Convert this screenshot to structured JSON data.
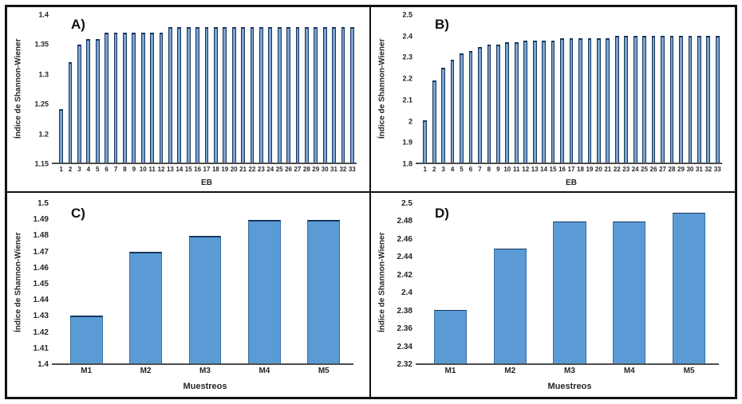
{
  "figure": {
    "background": "#ffffff",
    "border_color": "#111111",
    "axis_line_color": "#4d4d4d",
    "description": "Four-panel bar figure of Shannon-Wiener index"
  },
  "chart_data": [
    {
      "type": "bar",
      "panel_label": "A)",
      "xlabel": "EB",
      "ylabel": "Índice de Shannon-Wiener",
      "categories": [
        "1",
        "2",
        "3",
        "4",
        "5",
        "6",
        "7",
        "8",
        "9",
        "10",
        "11",
        "12",
        "13",
        "14",
        "15",
        "16",
        "17",
        "18",
        "19",
        "20",
        "21",
        "22",
        "23",
        "24",
        "25",
        "26",
        "27",
        "28",
        "29",
        "30",
        "31",
        "32",
        "33"
      ],
      "values": [
        1.24,
        1.32,
        1.35,
        1.36,
        1.36,
        1.37,
        1.37,
        1.37,
        1.37,
        1.37,
        1.37,
        1.37,
        1.38,
        1.38,
        1.38,
        1.38,
        1.38,
        1.38,
        1.38,
        1.38,
        1.38,
        1.38,
        1.38,
        1.38,
        1.38,
        1.38,
        1.38,
        1.38,
        1.38,
        1.38,
        1.38,
        1.38,
        1.38
      ],
      "ylim": [
        1.15,
        1.4
      ],
      "yticks": [
        "1.15",
        "1.2",
        "1.25",
        "1.3",
        "1.35",
        "1.4"
      ],
      "grid": false,
      "legend": false,
      "bar_fill": "#7da3cd",
      "bar_border": "#16365c",
      "bar_border_top_px": 2,
      "bar_frac": 0.42
    },
    {
      "type": "bar",
      "panel_label": "B)",
      "xlabel": "EB",
      "ylabel": "Índice de Shannon-Wiener",
      "categories": [
        "1",
        "2",
        "3",
        "4",
        "5",
        "6",
        "7",
        "8",
        "9",
        "10",
        "11",
        "12",
        "13",
        "14",
        "15",
        "16",
        "17",
        "18",
        "19",
        "20",
        "21",
        "22",
        "23",
        "24",
        "25",
        "26",
        "27",
        "28",
        "29",
        "30",
        "31",
        "32",
        "33"
      ],
      "values": [
        2.0,
        2.19,
        2.25,
        2.29,
        2.32,
        2.33,
        2.35,
        2.36,
        2.36,
        2.37,
        2.37,
        2.38,
        2.38,
        2.38,
        2.38,
        2.39,
        2.39,
        2.39,
        2.39,
        2.39,
        2.39,
        2.4,
        2.4,
        2.4,
        2.4,
        2.4,
        2.4,
        2.4,
        2.4,
        2.4,
        2.4,
        2.4,
        2.4
      ],
      "ylim": [
        1.8,
        2.5
      ],
      "yticks": [
        "1.8",
        "1.9",
        "2",
        "2.1",
        "2.2",
        "2.3",
        "2.4",
        "2.5"
      ],
      "grid": false,
      "legend": false,
      "bar_fill": "#7da3cd",
      "bar_border": "#16365c",
      "bar_border_top_px": 2,
      "bar_frac": 0.42
    },
    {
      "type": "bar",
      "panel_label": "C)",
      "xlabel": "Muestreos",
      "ylabel": "Índice de Shannon-Wiener",
      "categories": [
        "M1",
        "M2",
        "M3",
        "M4",
        "M5"
      ],
      "values": [
        1.43,
        1.47,
        1.48,
        1.49,
        1.49
      ],
      "ylim": [
        1.4,
        1.5
      ],
      "yticks": [
        "1.4",
        "1.41",
        "1.42",
        "1.43",
        "1.44",
        "1.45",
        "1.46",
        "1.47",
        "1.48",
        "1.49",
        "1.5"
      ],
      "grid": false,
      "legend": false,
      "bar_fill": "#5b9bd5",
      "bar_border": "#3a6fa0",
      "bar_border_top_px": 2,
      "bar_frac": 0.55
    },
    {
      "type": "bar",
      "panel_label": "D)",
      "xlabel": "Muestreos",
      "ylabel": "Índice de Shannon-Wiener",
      "categories": [
        "M1",
        "M2",
        "M3",
        "M4",
        "M5"
      ],
      "values": [
        2.38,
        2.45,
        2.48,
        2.48,
        2.49
      ],
      "ylim": [
        2.32,
        2.5
      ],
      "yticks": [
        "2.32",
        "2.34",
        "2.36",
        "2.38",
        "2.4",
        "2.42",
        "2.44",
        "2.46",
        "2.48",
        "2.5"
      ],
      "grid": false,
      "legend": false,
      "bar_fill": "#5b9bd5",
      "bar_border": "#3a6fa0",
      "bar_border_top_px": 1,
      "bar_frac": 0.55
    }
  ]
}
